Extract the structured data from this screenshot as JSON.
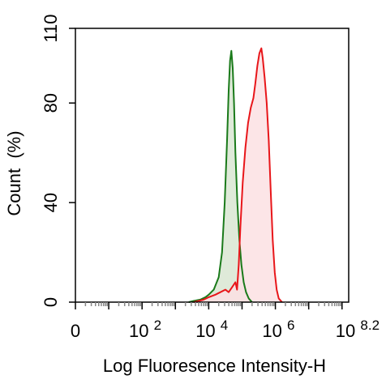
{
  "chart_data": {
    "type": "area",
    "title": "",
    "xlabel": "Log Fluoresence Intensity-H",
    "ylabel": "Count  (%)",
    "x_scale": "log10",
    "xlim_log10": [
      0,
      8.2
    ],
    "ylim": [
      0,
      110
    ],
    "yticks": [
      0,
      40,
      80,
      110
    ],
    "xticks": [
      {
        "pos": 0,
        "base": "0",
        "exp": ""
      },
      {
        "pos": 2,
        "base": "10",
        "exp": "2"
      },
      {
        "pos": 4,
        "base": "10",
        "exp": "4"
      },
      {
        "pos": 6,
        "base": "10",
        "exp": "6"
      },
      {
        "pos": 8.2,
        "base": "10",
        "exp": "8.2"
      }
    ],
    "grid": false,
    "legend": "none",
    "series": [
      {
        "color": "#1a7a1a",
        "fill": "#d9e6d2",
        "points": [
          [
            3.4,
            0
          ],
          [
            3.55,
            0.5
          ],
          [
            3.75,
            1
          ],
          [
            3.9,
            2
          ],
          [
            4.0,
            3
          ],
          [
            4.15,
            5
          ],
          [
            4.3,
            10
          ],
          [
            4.4,
            20
          ],
          [
            4.48,
            40
          ],
          [
            4.55,
            65
          ],
          [
            4.6,
            85
          ],
          [
            4.64,
            97
          ],
          [
            4.68,
            101
          ],
          [
            4.72,
            94
          ],
          [
            4.76,
            80
          ],
          [
            4.8,
            60
          ],
          [
            4.86,
            40
          ],
          [
            4.92,
            25
          ],
          [
            4.98,
            15
          ],
          [
            5.05,
            8
          ],
          [
            5.12,
            4
          ],
          [
            5.2,
            1.5
          ],
          [
            5.3,
            0
          ]
        ]
      },
      {
        "color": "#e8161a",
        "fill": "#fbe1e3",
        "points": [
          [
            3.55,
            0
          ],
          [
            3.7,
            0.5
          ],
          [
            3.85,
            1
          ],
          [
            4.0,
            2
          ],
          [
            4.2,
            3
          ],
          [
            4.35,
            4
          ],
          [
            4.5,
            5
          ],
          [
            4.6,
            4
          ],
          [
            4.7,
            6
          ],
          [
            4.8,
            8
          ],
          [
            4.85,
            5
          ],
          [
            4.9,
            15
          ],
          [
            4.95,
            30
          ],
          [
            5.02,
            48
          ],
          [
            5.1,
            62
          ],
          [
            5.18,
            72
          ],
          [
            5.26,
            78
          ],
          [
            5.34,
            82
          ],
          [
            5.4,
            88
          ],
          [
            5.46,
            95
          ],
          [
            5.52,
            100
          ],
          [
            5.58,
            102
          ],
          [
            5.62,
            98
          ],
          [
            5.68,
            90
          ],
          [
            5.74,
            80
          ],
          [
            5.8,
            65
          ],
          [
            5.86,
            45
          ],
          [
            5.92,
            25
          ],
          [
            5.98,
            12
          ],
          [
            6.04,
            5
          ],
          [
            6.1,
            1.5
          ],
          [
            6.2,
            0
          ]
        ]
      }
    ]
  }
}
